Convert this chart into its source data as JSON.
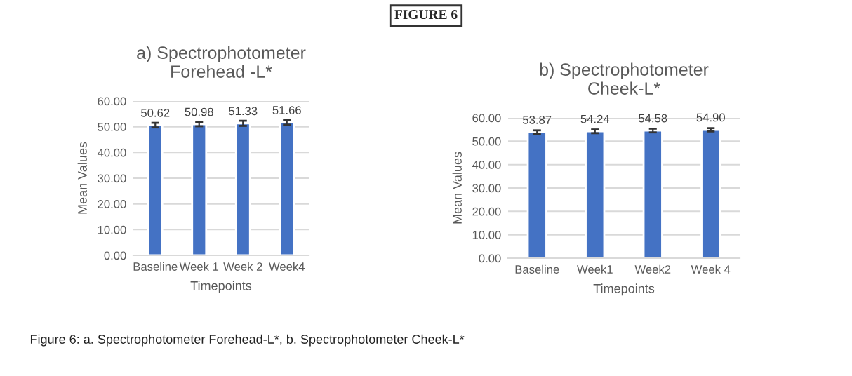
{
  "chart_data": [
    {
      "type": "bar",
      "title": "a) Spectrophotometer\nForehead -L*",
      "xlabel": "Timepoints",
      "ylabel": "Mean Values",
      "categories": [
        "Baseline",
        "Week 1",
        "Week 2",
        "Week4"
      ],
      "values": [
        50.62,
        50.98,
        51.33,
        51.66
      ],
      "value_labels": [
        "50.62",
        "50.98",
        "51.33",
        "51.66"
      ],
      "errors": [
        0.9,
        0.8,
        1.0,
        0.9
      ],
      "color": "#4472c4",
      "ylim": [
        0,
        60
      ],
      "yticks": [
        {
          "value": 0,
          "label": "0.00"
        },
        {
          "value": 10,
          "label": "10.00"
        },
        {
          "value": 20,
          "label": "20.00"
        },
        {
          "value": 30,
          "label": "30.00"
        },
        {
          "value": 40,
          "label": "40.00"
        },
        {
          "value": 50,
          "label": "50.00"
        },
        {
          "value": 60,
          "label": "60.00"
        }
      ],
      "grid": "y",
      "legend": false,
      "annotations": [
        "FIGURE 6",
        "Figure 6: a. Spectrophotometer Forehead-L*, b. Spectrophotometer Cheek-L*"
      ]
    },
    {
      "type": "bar",
      "title": "b) Spectrophotometer\nCheek-L*",
      "xlabel": "Timepoints",
      "ylabel": "Mean Values",
      "categories": [
        "Baseline",
        "Week1",
        "Week2",
        "Week 4"
      ],
      "values": [
        53.87,
        54.24,
        54.58,
        54.9
      ],
      "value_labels": [
        "53.87",
        "54.24",
        "54.58",
        "54.90"
      ],
      "errors": [
        0.8,
        0.8,
        0.8,
        0.7
      ],
      "color": "#4472c4",
      "ylim": [
        0,
        60
      ],
      "yticks": [
        {
          "value": 0,
          "label": "0.00"
        },
        {
          "value": 10,
          "label": "10.00"
        },
        {
          "value": 20,
          "label": "20.00"
        },
        {
          "value": 30,
          "label": "30.00"
        },
        {
          "value": 40,
          "label": "40.00"
        },
        {
          "value": 50,
          "label": "50.00"
        },
        {
          "value": 60,
          "label": "60.00"
        }
      ],
      "grid": "y",
      "legend": false
    }
  ]
}
